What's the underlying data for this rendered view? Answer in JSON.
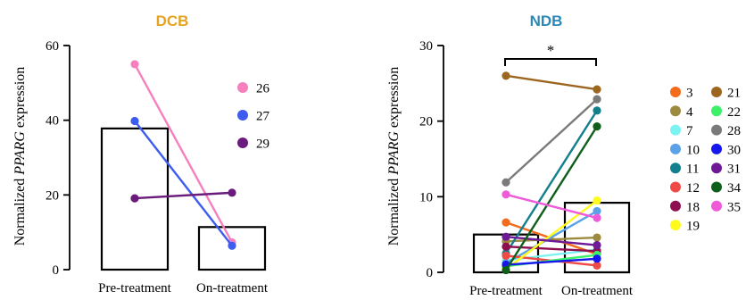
{
  "chart_data": [
    {
      "type": "bar",
      "title": "DCB",
      "ylabel_prefix": "Normalized ",
      "ylabel_gene": "PPARG",
      "ylabel_suffix": " expression",
      "categories": [
        "Pre-treatment",
        "On-treatment"
      ],
      "bar_values": [
        37.8,
        11.4
      ],
      "ylim": [
        0,
        60
      ],
      "yticks": [
        "0",
        "20",
        "40",
        "60"
      ],
      "grid": false,
      "legend_position": "right",
      "paired_series": [
        {
          "name": "26",
          "color": "#f77fbe",
          "values": [
            55.0,
            7.3
          ]
        },
        {
          "name": "27",
          "color": "#3d5df0",
          "values": [
            39.8,
            6.4
          ]
        },
        {
          "name": "29",
          "color": "#6a1b7c",
          "values": [
            19.1,
            20.6
          ]
        }
      ]
    },
    {
      "type": "bar",
      "title": "NDB",
      "ylabel_prefix": "Normalized ",
      "ylabel_gene": "PPARG",
      "ylabel_suffix": " expression",
      "categories": [
        "Pre-treatment",
        "On-treatment"
      ],
      "bar_values": [
        5.0,
        9.2
      ],
      "ylim": [
        0,
        30
      ],
      "yticks": [
        "0",
        "10",
        "20",
        "30"
      ],
      "grid": false,
      "legend_position": "right",
      "significance": "*",
      "paired_series": [
        {
          "name": "3",
          "color": "#f36b1c",
          "values": [
            6.6,
            2.4
          ]
        },
        {
          "name": "4",
          "color": "#9c8a3e",
          "values": [
            4.1,
            4.6
          ]
        },
        {
          "name": "7",
          "color": "#7df2f2",
          "values": [
            1.6,
            3.0
          ]
        },
        {
          "name": "10",
          "color": "#5aa1e8",
          "values": [
            1.2,
            8.1
          ]
        },
        {
          "name": "11",
          "color": "#127f8c",
          "values": [
            2.5,
            21.4
          ]
        },
        {
          "name": "12",
          "color": "#f04a47",
          "values": [
            2.2,
            0.9
          ]
        },
        {
          "name": "18",
          "color": "#8f0e50",
          "values": [
            3.4,
            2.8
          ]
        },
        {
          "name": "19",
          "color": "#fefa1c",
          "values": [
            0.4,
            9.5
          ]
        },
        {
          "name": "21",
          "color": "#9c6620",
          "values": [
            26.0,
            24.2
          ]
        },
        {
          "name": "22",
          "color": "#3cf06a",
          "values": [
            0.8,
            2.3
          ]
        },
        {
          "name": "28",
          "color": "#7a7a7a",
          "values": [
            11.9,
            22.9
          ]
        },
        {
          "name": "30",
          "color": "#1616ee",
          "values": [
            1.0,
            1.8
          ]
        },
        {
          "name": "31",
          "color": "#6e1a96",
          "values": [
            4.7,
            3.6
          ]
        },
        {
          "name": "34",
          "color": "#0f5f1c",
          "values": [
            0.3,
            19.3
          ]
        },
        {
          "name": "35",
          "color": "#ee5ad8",
          "values": [
            10.3,
            7.2
          ]
        }
      ]
    }
  ]
}
